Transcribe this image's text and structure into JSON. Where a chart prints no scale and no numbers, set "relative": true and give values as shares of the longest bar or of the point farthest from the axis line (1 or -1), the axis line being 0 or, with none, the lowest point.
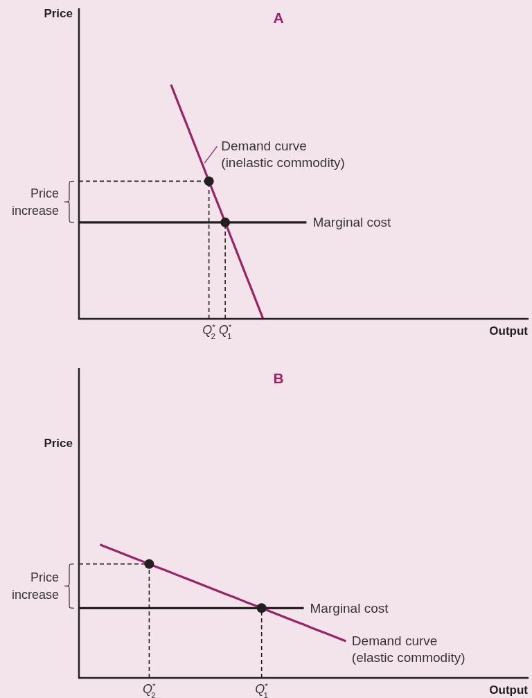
{
  "chart_data": [
    {
      "type": "line",
      "title": "A",
      "xlabel": "Output",
      "ylabel": "Price",
      "relative": true,
      "annotations": [
        "Price increase"
      ],
      "categories": [
        null,
        null,
        null,
        null,
        null,
        null,
        null,
        null,
        null,
        null,
        null,
        null,
        null,
        null,
        null,
        null,
        null,
        null,
        null,
        null,
        null,
        null,
        null,
        null,
        "Q$^{*}$$_{2}$",
        null,
        null,
        "Q$^{*}$$_{1}$",
        null,
        null,
        null,
        null,
        null,
        null,
        null,
        null,
        null,
        null,
        null,
        null,
        null,
        null,
        null,
        null,
        null,
        null,
        null,
        null,
        null,
        null,
        null,
        null,
        null,
        null,
        null,
        null,
        null,
        null,
        null,
        null,
        null,
        null,
        null,
        null,
        null,
        null,
        null,
        null,
        null,
        null,
        null,
        null,
        null,
        null,
        null,
        null,
        null,
        null,
        null,
        null,
        null,
        null,
        null,
        null
      ],
      "series": [
        {
          "name": "Demand curve (inelastic commodity)",
          "color": "#9a2363",
          "values": [
            null,
            null,
            null,
            null,
            null,
            null,
            null,
            null,
            null,
            null,
            null,
            null,
            null,
            null,
            null,
            null,
            null,
            1,
            0.941,
            0.882,
            0.824,
            0.765,
            0.706,
            0.647,
            0.588,
            0.529,
            0.471,
            0.412,
            0.353,
            0.294,
            0.235,
            0.176,
            0.118,
            0.059,
            0,
            null,
            null,
            null,
            null,
            null,
            null,
            null,
            null,
            null,
            null,
            null,
            null,
            null,
            null,
            null,
            null,
            null,
            null,
            null,
            null,
            null,
            null,
            null,
            null,
            null,
            null,
            null,
            null,
            null,
            null,
            null,
            null,
            null,
            null,
            null,
            null,
            null,
            null,
            null,
            null,
            null,
            null,
            null,
            null,
            null,
            null,
            null,
            null,
            null
          ]
        },
        {
          "name": "Marginal cost",
          "color": "#231f20",
          "values": [
            0.412,
            0.412,
            0.412,
            0.412,
            0.412,
            0.412,
            0.412,
            0.412,
            0.412,
            0.412,
            0.412,
            0.412,
            0.412,
            0.412,
            0.412,
            0.412,
            0.412,
            0.412,
            0.412,
            0.412,
            0.412,
            0.412,
            0.412,
            0.412,
            0.412,
            0.412,
            0.412,
            0.412,
            0.412,
            0.412,
            0.412,
            0.412,
            0.412,
            0.412,
            0.412,
            0.412,
            0.412,
            0.412,
            0.412,
            0.412,
            0.412,
            0.412,
            0.412,
            null,
            null,
            null,
            null,
            null,
            null,
            null,
            null,
            null,
            null,
            null,
            null,
            null,
            null,
            null,
            null,
            null,
            null,
            null,
            null,
            null,
            null,
            null,
            null,
            null,
            null,
            null,
            null,
            null,
            null,
            null,
            null,
            null,
            null,
            null,
            null,
            null,
            null,
            null,
            null,
            null
          ]
        },
        {
          "color": "#231f20",
          "line_style": "dashed",
          "values": [
            0.588,
            0.588,
            0.588,
            0.588,
            0.588,
            0.588,
            0.588,
            0.588,
            0.588,
            0.588,
            0.588,
            0.588,
            0.588,
            0.588,
            0.588,
            0.588,
            0.588,
            0.588,
            0.588,
            0.588,
            0.588,
            0.588,
            0.588,
            0.588,
            0.588,
            null,
            null,
            null,
            null,
            null,
            null,
            null,
            null,
            null,
            null,
            null,
            null,
            null,
            null,
            null,
            null,
            null,
            null,
            null,
            null,
            null,
            null,
            null,
            null,
            null,
            null,
            null,
            null,
            null,
            null,
            null,
            null,
            null,
            null,
            null,
            null,
            null,
            null,
            null,
            null,
            null,
            null,
            null,
            null,
            null,
            null,
            null,
            null,
            null,
            null,
            null,
            null,
            null,
            null,
            null,
            null,
            null,
            null,
            null
          ]
        },
        {
          "type": "lollipop",
          "color": "#231f20",
          "line_style": "dashed",
          "marker": "circle",
          "values": [
            null,
            null,
            null,
            null,
            null,
            null,
            null,
            null,
            null,
            null,
            null,
            null,
            null,
            null,
            null,
            null,
            null,
            null,
            null,
            null,
            null,
            null,
            null,
            null,
            0.588,
            null,
            null,
            0.412,
            null,
            null,
            null,
            null,
            null,
            null,
            null,
            null,
            null,
            null,
            null,
            null,
            null,
            null,
            null,
            null,
            null,
            null,
            null,
            null,
            null,
            null,
            null,
            null,
            null,
            null,
            null,
            null,
            null,
            null,
            null,
            null,
            null,
            null,
            null,
            null,
            null,
            null,
            null,
            null,
            null,
            null,
            null,
            null,
            null,
            null,
            null,
            null,
            null,
            null,
            null,
            null,
            null,
            null,
            null,
            null
          ]
        }
      ]
    },
    {
      "type": "line",
      "title": "B",
      "xlabel": "Output",
      "ylabel": "Price",
      "relative": true,
      "annotations": [
        "Price increase"
      ],
      "categories": [
        null,
        null,
        null,
        null,
        null,
        null,
        null,
        null,
        null,
        null,
        "Q$^{*}$$_{2}$",
        null,
        null,
        null,
        null,
        null,
        null,
        null,
        null,
        null,
        null,
        null,
        null,
        null,
        null,
        null,
        "Q$^{*}$$_{1}$",
        null,
        null,
        null,
        null,
        null,
        null,
        null,
        null,
        null,
        null,
        null,
        null,
        null,
        null,
        null,
        null,
        null,
        null,
        null,
        null,
        null,
        null,
        null,
        null,
        null,
        null,
        null,
        null,
        null,
        null,
        null,
        null,
        null,
        null,
        null,
        null,
        null,
        null
      ],
      "series": [
        {
          "name": "Demand curve (elastic commodity)",
          "color": "#9a2363",
          "values": [
            null,
            null,
            null,
            1,
            0.979,
            0.959,
            0.938,
            0.917,
            0.896,
            0.876,
            0.855,
            0.834,
            0.814,
            0.793,
            0.772,
            0.752,
            0.731,
            0.71,
            0.689,
            0.669,
            0.648,
            0.627,
            0.607,
            0.586,
            0.565,
            0.545,
            0.524,
            0.503,
            0.482,
            0.462,
            0.441,
            0.42,
            0.4,
            0.379,
            0.358,
            0.338,
            0.317,
            0.296,
            0.276,
            null,
            null,
            null,
            null,
            null,
            null,
            null,
            null,
            null,
            null,
            null,
            null,
            null,
            null,
            null,
            null,
            null,
            null,
            null,
            null,
            null,
            null,
            null,
            null,
            null,
            null
          ]
        },
        {
          "name": "Marginal cost",
          "color": "#231f20",
          "values": [
            0.524,
            0.524,
            0.524,
            0.524,
            0.524,
            0.524,
            0.524,
            0.524,
            0.524,
            0.524,
            0.524,
            0.524,
            0.524,
            0.524,
            0.524,
            0.524,
            0.524,
            0.524,
            0.524,
            0.524,
            0.524,
            0.524,
            0.524,
            0.524,
            0.524,
            0.524,
            0.524,
            0.524,
            0.524,
            0.524,
            0.524,
            0.524,
            0.524,
            null,
            null,
            null,
            null,
            null,
            null,
            null,
            null,
            null,
            null,
            null,
            null,
            null,
            null,
            null,
            null,
            null,
            null,
            null,
            null,
            null,
            null,
            null,
            null,
            null,
            null,
            null,
            null,
            null,
            null,
            null,
            null
          ]
        },
        {
          "color": "#231f20",
          "line_style": "dashed",
          "values": [
            0.855,
            0.855,
            0.855,
            0.855,
            0.855,
            0.855,
            0.855,
            0.855,
            0.855,
            0.855,
            0.855,
            null,
            null,
            null,
            null,
            null,
            null,
            null,
            null,
            null,
            null,
            null,
            null,
            null,
            null,
            null,
            null,
            null,
            null,
            null,
            null,
            null,
            null,
            null,
            null,
            null,
            null,
            null,
            null,
            null,
            null,
            null,
            null,
            null,
            null,
            null,
            null,
            null,
            null,
            null,
            null,
            null,
            null,
            null,
            null,
            null,
            null,
            null,
            null,
            null,
            null,
            null,
            null,
            null,
            null
          ]
        },
        {
          "type": "lollipop",
          "color": "#231f20",
          "line_style": "dashed",
          "marker": "circle",
          "values": [
            null,
            null,
            null,
            null,
            null,
            null,
            null,
            null,
            null,
            null,
            0.855,
            null,
            null,
            null,
            null,
            null,
            null,
            null,
            null,
            null,
            null,
            null,
            null,
            null,
            null,
            null,
            0.524,
            null,
            null,
            null,
            null,
            null,
            null,
            null,
            null,
            null,
            null,
            null,
            null,
            null,
            null,
            null,
            null,
            null,
            null,
            null,
            null,
            null,
            null,
            null,
            null,
            null,
            null,
            null,
            null,
            null,
            null,
            null,
            null,
            null,
            null,
            null,
            null,
            null,
            null
          ]
        }
      ]
    }
  ]
}
